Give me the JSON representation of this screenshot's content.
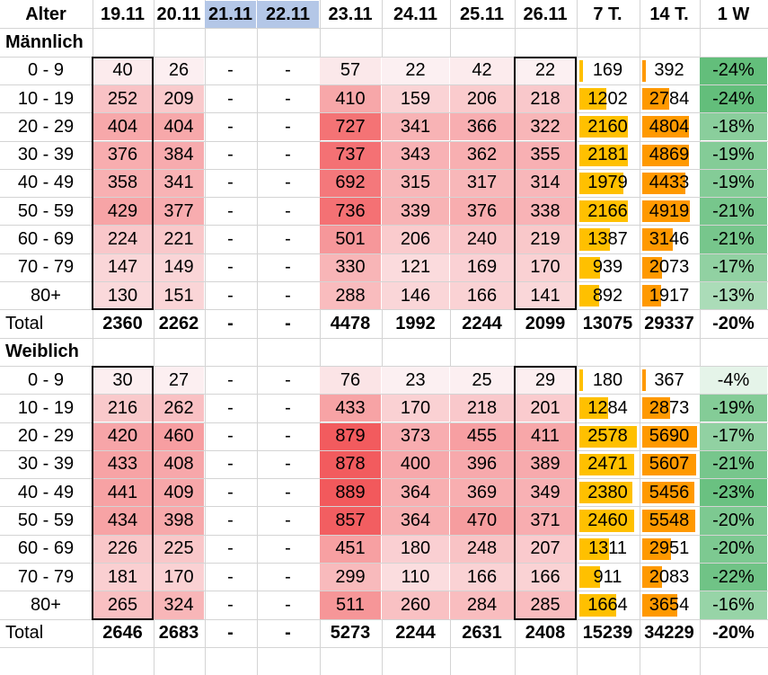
{
  "headers": [
    "Alter",
    "19.11",
    "20.11",
    "21.11",
    "22.11",
    "23.11",
    "24.11",
    "25.11",
    "26.11",
    "7 T.",
    "14 T.",
    "1 W"
  ],
  "highlighted_headers": [
    "21.11",
    "22.11"
  ],
  "sections": [
    {
      "title": "Männlich",
      "rows": [
        {
          "age": "0 - 9",
          "d19": "40",
          "d20": "26",
          "d21": "-",
          "d22": "-",
          "d23": "57",
          "d24": "22",
          "d25": "42",
          "d26": "22",
          "t7": "169",
          "t14": "392",
          "w1": "-24%"
        },
        {
          "age": "10 - 19",
          "d19": "252",
          "d20": "209",
          "d21": "-",
          "d22": "-",
          "d23": "410",
          "d24": "159",
          "d25": "206",
          "d26": "218",
          "t7": "1202",
          "t14": "2784",
          "w1": "-24%"
        },
        {
          "age": "20 - 29",
          "d19": "404",
          "d20": "404",
          "d21": "-",
          "d22": "-",
          "d23": "727",
          "d24": "341",
          "d25": "366",
          "d26": "322",
          "t7": "2160",
          "t14": "4804",
          "w1": "-18%"
        },
        {
          "age": "30 - 39",
          "d19": "376",
          "d20": "384",
          "d21": "-",
          "d22": "-",
          "d23": "737",
          "d24": "343",
          "d25": "362",
          "d26": "355",
          "t7": "2181",
          "t14": "4869",
          "w1": "-19%"
        },
        {
          "age": "40 - 49",
          "d19": "358",
          "d20": "341",
          "d21": "-",
          "d22": "-",
          "d23": "692",
          "d24": "315",
          "d25": "317",
          "d26": "314",
          "t7": "1979",
          "t14": "4433",
          "w1": "-19%"
        },
        {
          "age": "50 - 59",
          "d19": "429",
          "d20": "377",
          "d21": "-",
          "d22": "-",
          "d23": "736",
          "d24": "339",
          "d25": "376",
          "d26": "338",
          "t7": "2166",
          "t14": "4919",
          "w1": "-21%"
        },
        {
          "age": "60 - 69",
          "d19": "224",
          "d20": "221",
          "d21": "-",
          "d22": "-",
          "d23": "501",
          "d24": "206",
          "d25": "240",
          "d26": "219",
          "t7": "1387",
          "t14": "3146",
          "w1": "-21%"
        },
        {
          "age": "70 - 79",
          "d19": "147",
          "d20": "149",
          "d21": "-",
          "d22": "-",
          "d23": "330",
          "d24": "121",
          "d25": "169",
          "d26": "170",
          "t7": "939",
          "t14": "2073",
          "w1": "-17%"
        },
        {
          "age": "80+",
          "d19": "130",
          "d20": "151",
          "d21": "-",
          "d22": "-",
          "d23": "288",
          "d24": "146",
          "d25": "166",
          "d26": "141",
          "t7": "892",
          "t14": "1917",
          "w1": "-13%"
        }
      ],
      "total": {
        "age": "Total",
        "d19": "2360",
        "d20": "2262",
        "d21": "-",
        "d22": "-",
        "d23": "4478",
        "d24": "1992",
        "d25": "2244",
        "d26": "2099",
        "t7": "13075",
        "t14": "29337",
        "w1": "-20%"
      }
    },
    {
      "title": "Weiblich",
      "rows": [
        {
          "age": "0 - 9",
          "d19": "30",
          "d20": "27",
          "d21": "-",
          "d22": "-",
          "d23": "76",
          "d24": "23",
          "d25": "25",
          "d26": "29",
          "t7": "180",
          "t14": "367",
          "w1": "-4%"
        },
        {
          "age": "10 - 19",
          "d19": "216",
          "d20": "262",
          "d21": "-",
          "d22": "-",
          "d23": "433",
          "d24": "170",
          "d25": "218",
          "d26": "201",
          "t7": "1284",
          "t14": "2873",
          "w1": "-19%"
        },
        {
          "age": "20 - 29",
          "d19": "420",
          "d20": "460",
          "d21": "-",
          "d22": "-",
          "d23": "879",
          "d24": "373",
          "d25": "455",
          "d26": "411",
          "t7": "2578",
          "t14": "5690",
          "w1": "-17%"
        },
        {
          "age": "30 - 39",
          "d19": "433",
          "d20": "408",
          "d21": "-",
          "d22": "-",
          "d23": "878",
          "d24": "400",
          "d25": "396",
          "d26": "389",
          "t7": "2471",
          "t14": "5607",
          "w1": "-21%"
        },
        {
          "age": "40 - 49",
          "d19": "441",
          "d20": "409",
          "d21": "-",
          "d22": "-",
          "d23": "889",
          "d24": "364",
          "d25": "369",
          "d26": "349",
          "t7": "2380",
          "t14": "5456",
          "w1": "-23%"
        },
        {
          "age": "50 - 59",
          "d19": "434",
          "d20": "398",
          "d21": "-",
          "d22": "-",
          "d23": "857",
          "d24": "364",
          "d25": "470",
          "d26": "371",
          "t7": "2460",
          "t14": "5548",
          "w1": "-20%"
        },
        {
          "age": "60 - 69",
          "d19": "226",
          "d20": "225",
          "d21": "-",
          "d22": "-",
          "d23": "451",
          "d24": "180",
          "d25": "248",
          "d26": "207",
          "t7": "1311",
          "t14": "2951",
          "w1": "-20%"
        },
        {
          "age": "70 - 79",
          "d19": "181",
          "d20": "170",
          "d21": "-",
          "d22": "-",
          "d23": "299",
          "d24": "110",
          "d25": "166",
          "d26": "166",
          "t7": "911",
          "t14": "2083",
          "w1": "-22%"
        },
        {
          "age": "80+",
          "d19": "265",
          "d20": "324",
          "d21": "-",
          "d22": "-",
          "d23": "511",
          "d24": "260",
          "d25": "284",
          "d26": "285",
          "t7": "1664",
          "t14": "3654",
          "w1": "-16%"
        }
      ],
      "total": {
        "age": "Total",
        "d19": "2646",
        "d20": "2683",
        "d21": "-",
        "d22": "-",
        "d23": "5273",
        "d24": "2244",
        "d25": "2631",
        "d26": "2408",
        "t7": "15239",
        "t14": "34229",
        "w1": "-20%"
      }
    }
  ],
  "colors": {
    "header_highlight": "#b4c7e7",
    "heat_low": "#fcf0f2",
    "heat_high": "#f2595c",
    "bar_7t": "#ffc000",
    "bar_14t": "#ff9900",
    "change_strong": "#63be7b",
    "change_weak": "#ffffff"
  },
  "chart_data": {
    "type": "table",
    "columns": [
      "Alter",
      "19.11",
      "20.11",
      "21.11",
      "22.11",
      "23.11",
      "24.11",
      "25.11",
      "26.11",
      "7 T.",
      "14 T.",
      "1 W"
    ],
    "groups": [
      {
        "name": "Männlich",
        "rows": [
          [
            "0 - 9",
            40,
            26,
            null,
            null,
            57,
            22,
            42,
            22,
            169,
            392,
            -24
          ],
          [
            "10 - 19",
            252,
            209,
            null,
            null,
            410,
            159,
            206,
            218,
            1202,
            2784,
            -24
          ],
          [
            "20 - 29",
            404,
            404,
            null,
            null,
            727,
            341,
            366,
            322,
            2160,
            4804,
            -18
          ],
          [
            "30 - 39",
            376,
            384,
            null,
            null,
            737,
            343,
            362,
            355,
            2181,
            4869,
            -19
          ],
          [
            "40 - 49",
            358,
            341,
            null,
            null,
            692,
            315,
            317,
            314,
            1979,
            4433,
            -19
          ],
          [
            "50 - 59",
            429,
            377,
            null,
            null,
            736,
            339,
            376,
            338,
            2166,
            4919,
            -21
          ],
          [
            "60 - 69",
            224,
            221,
            null,
            null,
            501,
            206,
            240,
            219,
            1387,
            3146,
            -21
          ],
          [
            "70 - 79",
            147,
            149,
            null,
            null,
            330,
            121,
            169,
            170,
            939,
            2073,
            -17
          ],
          [
            "80+",
            130,
            151,
            null,
            null,
            288,
            146,
            166,
            141,
            892,
            1917,
            -13
          ]
        ],
        "total": [
          "Total",
          2360,
          2262,
          null,
          null,
          4478,
          1992,
          2244,
          2099,
          13075,
          29337,
          -20
        ]
      },
      {
        "name": "Weiblich",
        "rows": [
          [
            "0 - 9",
            30,
            27,
            null,
            null,
            76,
            23,
            25,
            29,
            180,
            367,
            -4
          ],
          [
            "10 - 19",
            216,
            262,
            null,
            null,
            433,
            170,
            218,
            201,
            1284,
            2873,
            -19
          ],
          [
            "20 - 29",
            420,
            460,
            null,
            null,
            879,
            373,
            455,
            411,
            2578,
            5690,
            -17
          ],
          [
            "30 - 39",
            433,
            408,
            null,
            null,
            878,
            400,
            396,
            389,
            2471,
            5607,
            -21
          ],
          [
            "40 - 49",
            441,
            409,
            null,
            null,
            889,
            364,
            369,
            349,
            2380,
            5456,
            -23
          ],
          [
            "50 - 59",
            434,
            398,
            null,
            null,
            857,
            364,
            470,
            371,
            2460,
            5548,
            -20
          ],
          [
            "60 - 69",
            226,
            225,
            null,
            null,
            451,
            180,
            248,
            207,
            1311,
            2951,
            -20
          ],
          [
            "70 - 79",
            181,
            170,
            null,
            null,
            299,
            110,
            166,
            166,
            911,
            2083,
            -22
          ],
          [
            "80+",
            265,
            324,
            null,
            null,
            511,
            260,
            284,
            285,
            1664,
            3654,
            -16
          ]
        ],
        "total": [
          "Total",
          2646,
          2683,
          null,
          null,
          5273,
          2244,
          2631,
          2408,
          15239,
          34229,
          -20
        ]
      }
    ]
  }
}
